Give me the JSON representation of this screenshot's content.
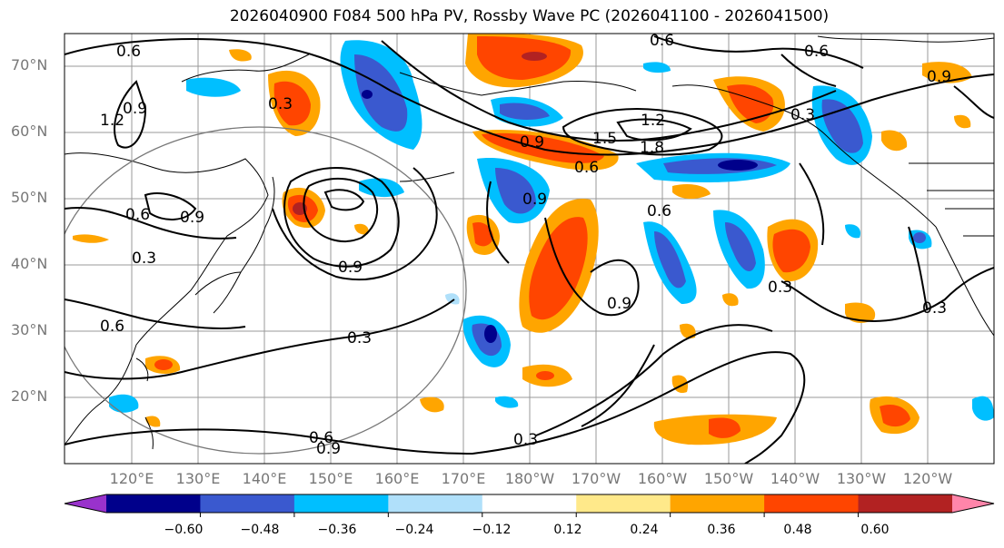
{
  "title": "2026040900 F084 500 hPa PV, Rossby Wave PC (2026041100 - 2026041500)",
  "map": {
    "lat_labels": [
      "70°N",
      "60°N",
      "50°N",
      "40°N",
      "30°N",
      "20°N"
    ],
    "lon_labels": [
      "120°E",
      "130°E",
      "140°E",
      "150°E",
      "160°E",
      "170°E",
      "180°W",
      "170°W",
      "160°W",
      "150°W",
      "140°W",
      "130°W",
      "120°W"
    ],
    "contour_labels": [
      "0.6",
      "0.6",
      "0.6",
      "0.6",
      "0.6",
      "0.6",
      "0.6",
      "0.6",
      "0.9",
      "0.9",
      "0.9",
      "0.9",
      "0.9",
      "0.9",
      "0.9",
      "0.9",
      "1.2",
      "1.2",
      "1.5",
      "1.8",
      "0.3",
      "0.3",
      "0.3",
      "0.3",
      "0.3",
      "0.3",
      "0.3"
    ]
  },
  "colorbar": {
    "colors": [
      "#9932cc",
      "#00008b",
      "#3a59cf",
      "#00bfff",
      "#b0e0fa",
      "#ffffff",
      "#ffe98a",
      "#ffa500",
      "#ff4500",
      "#b22222",
      "#ff85aa"
    ],
    "ticks": [
      "−0.60",
      "−0.48",
      "−0.36",
      "−0.24",
      "−0.12",
      "0.12",
      "0.24",
      "0.36",
      "0.48",
      "0.60"
    ]
  }
}
